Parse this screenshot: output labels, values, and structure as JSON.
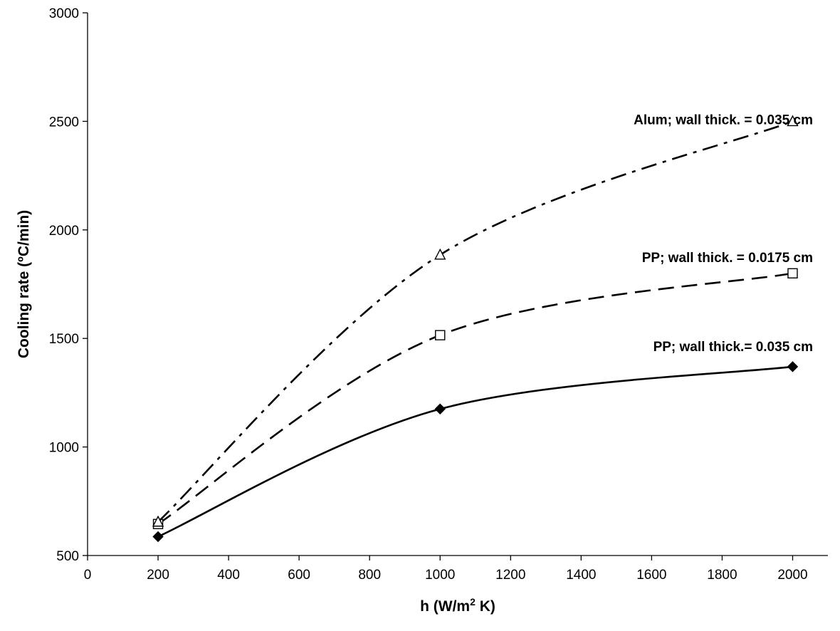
{
  "chart_data": {
    "type": "line",
    "title": "",
    "xlabel": {
      "main": "h (W/m",
      "sup": "2",
      "tail": " K)"
    },
    "ylabel": "Cooling rate (ºC/min)",
    "xlim": [
      0,
      2100
    ],
    "ylim": [
      500,
      3000
    ],
    "xticks": [
      0,
      200,
      400,
      600,
      800,
      1000,
      1200,
      1400,
      1600,
      1800,
      2000
    ],
    "yticks": [
      500,
      1000,
      1500,
      2000,
      2500,
      3000
    ],
    "x_tick_labels": [
      "0",
      "200",
      "400",
      "600",
      "800",
      "1000",
      "1200",
      "1400",
      "1600",
      "1800",
      "2000"
    ],
    "y_tick_labels": [
      "500",
      "1000",
      "1500",
      "2000",
      "2500",
      "3000"
    ],
    "grid": false,
    "legend": "none",
    "series": [
      {
        "name": "PP; wall thick.= 0.035 cm",
        "marker": "diamond-filled",
        "line": "solid",
        "x": [
          200,
          1000,
          2000
        ],
        "y": [
          587,
          1175,
          1370
        ]
      },
      {
        "name": "PP; wall thick. =  0.0175 cm",
        "marker": "square-open",
        "line": "dashed",
        "x": [
          200,
          1000,
          2000
        ],
        "y": [
          645,
          1515,
          1800
        ]
      },
      {
        "name": "Alum; wall thick. =  0.035 cm",
        "marker": "triangle-open",
        "line": "dash-dot",
        "x": [
          200,
          1000,
          2000
        ],
        "y": [
          655,
          1885,
          2500
        ]
      }
    ],
    "annotations": [
      {
        "series": 0,
        "text": "PP; wall thick.= 0.035 cm"
      },
      {
        "series": 1,
        "text": "PP; wall thick. =  0.0175 cm"
      },
      {
        "series": 2,
        "text": "Alum; wall thick. =  0.035 cm"
      }
    ],
    "colors": {
      "line": "#000000",
      "background": "#ffffff"
    }
  }
}
